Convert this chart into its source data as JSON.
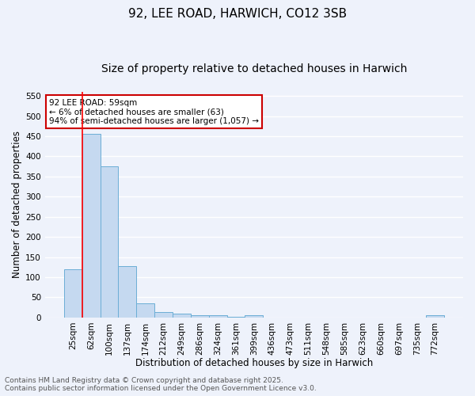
{
  "title_line1": "92, LEE ROAD, HARWICH, CO12 3SB",
  "title_line2": "Size of property relative to detached houses in Harwich",
  "xlabel": "Distribution of detached houses by size in Harwich",
  "ylabel": "Number of detached properties",
  "categories": [
    "25sqm",
    "62sqm",
    "100sqm",
    "137sqm",
    "174sqm",
    "212sqm",
    "249sqm",
    "286sqm",
    "324sqm",
    "361sqm",
    "399sqm",
    "436sqm",
    "473sqm",
    "511sqm",
    "548sqm",
    "585sqm",
    "623sqm",
    "660sqm",
    "697sqm",
    "735sqm",
    "772sqm"
  ],
  "values": [
    120,
    455,
    375,
    128,
    35,
    14,
    9,
    5,
    6,
    1,
    5,
    0,
    0,
    0,
    0,
    0,
    0,
    0,
    0,
    0,
    5
  ],
  "bar_color": "#c5d9f0",
  "bar_edge_color": "#6baed6",
  "red_line_x": 0.5,
  "annotation_title": "92 LEE ROAD: 59sqm",
  "annotation_line2": "← 6% of detached houses are smaller (63)",
  "annotation_line3": "94% of semi-detached houses are larger (1,057) →",
  "annotation_box_facecolor": "#ffffff",
  "annotation_box_edge": "#cc0000",
  "ylim": [
    0,
    560
  ],
  "yticks": [
    0,
    50,
    100,
    150,
    200,
    250,
    300,
    350,
    400,
    450,
    500,
    550
  ],
  "footer_line1": "Contains HM Land Registry data © Crown copyright and database right 2025.",
  "footer_line2": "Contains public sector information licensed under the Open Government Licence v3.0.",
  "bg_color": "#eef2fb",
  "plot_bg_color": "#eef2fb",
  "grid_color": "#ffffff",
  "title_fontsize": 11,
  "subtitle_fontsize": 10,
  "axis_label_fontsize": 8.5,
  "tick_fontsize": 7.5,
  "footer_fontsize": 6.5
}
